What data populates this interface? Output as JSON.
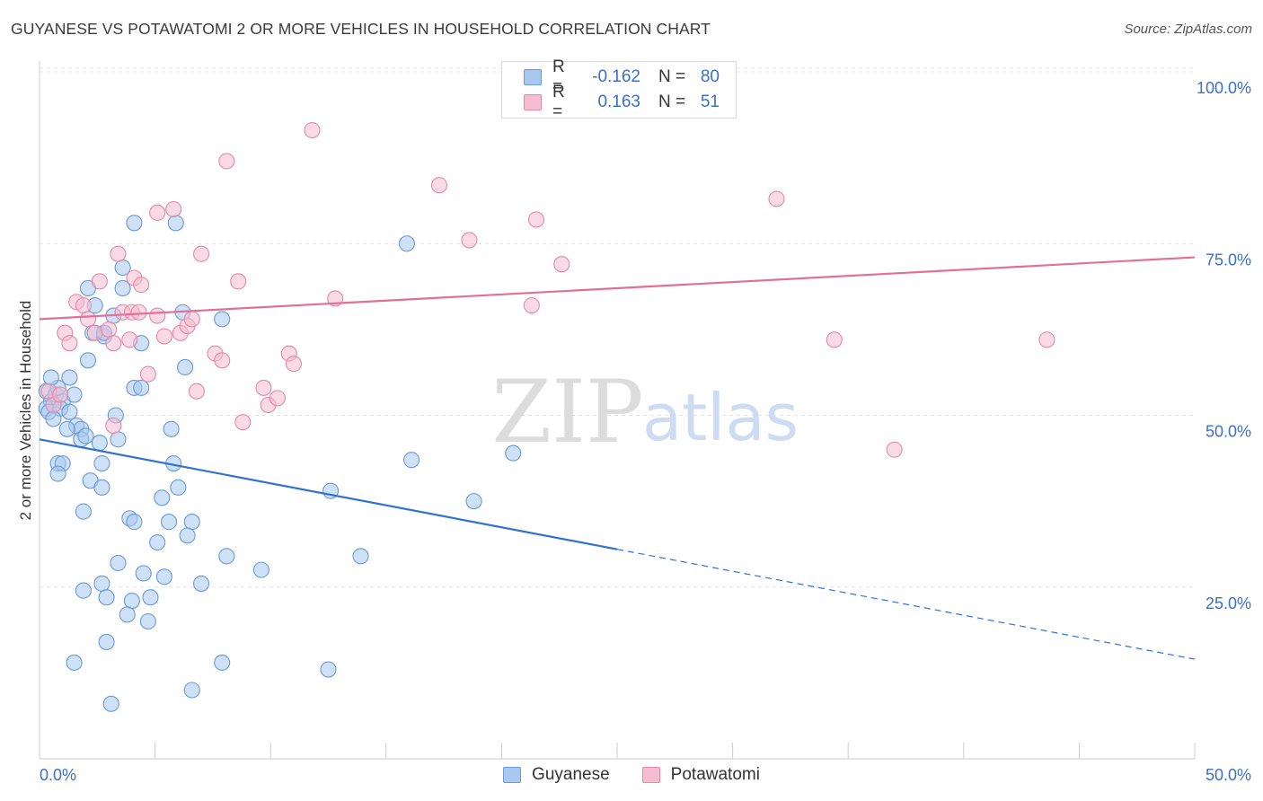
{
  "title": "GUYANESE VS POTAWATOMI 2 OR MORE VEHICLES IN HOUSEHOLD CORRELATION CHART",
  "source": "Source: ZipAtlas.com",
  "watermark": {
    "zip": "ZIP",
    "atlas": "atlas"
  },
  "legend": {
    "rows": [
      {
        "r_label": "R =",
        "r_value": "-0.162",
        "n_label": "N =",
        "n_value": "80",
        "color": "#a8c8f0",
        "border": "#6a9ad8"
      },
      {
        "r_label": "R =",
        "r_value": "0.163",
        "n_label": "N =",
        "n_value": "51",
        "color": "#f6bcd0",
        "border": "#e588a8"
      }
    ]
  },
  "bottom_legend": [
    {
      "label": "Guyanese",
      "color": "#a8c8f0",
      "border": "#6a9ad8"
    },
    {
      "label": "Potawatomi",
      "color": "#f6bcd0",
      "border": "#e588a8"
    }
  ],
  "chart_data": {
    "type": "scatter",
    "ylabel": "2 or more Vehicles in Household",
    "xlim": [
      0,
      50
    ],
    "ylim": [
      0,
      100
    ],
    "x_tick_labels": [
      "0.0%",
      "50.0%"
    ],
    "y_tick_labels": [
      {
        "value": 100,
        "label": "100.0%"
      },
      {
        "value": 75,
        "label": "75.0%"
      },
      {
        "value": 50,
        "label": "50.0%"
      },
      {
        "value": 25,
        "label": "25.0%"
      }
    ],
    "grid": true,
    "series": [
      {
        "name": "Guyanese",
        "color": "#a8c8f0",
        "stroke": "#6a9ad8",
        "trend_color": "#2f72d0",
        "trend": {
          "x0": 0,
          "y0": 46.5,
          "x1": 25,
          "y1": 30.5,
          "x_dash_end": 50,
          "y_dash_end": 14.5
        },
        "points": [
          [
            0.3,
            53.5
          ],
          [
            0.5,
            52
          ],
          [
            0.7,
            53
          ],
          [
            0.3,
            51
          ],
          [
            0.8,
            54
          ],
          [
            0.5,
            55.5
          ],
          [
            1.0,
            52
          ],
          [
            1.3,
            55.5
          ],
          [
            1.5,
            53
          ],
          [
            1.6,
            48.5
          ],
          [
            1.8,
            48
          ],
          [
            1.2,
            48
          ],
          [
            1.8,
            46.5
          ],
          [
            2.1,
            68.5
          ],
          [
            2.1,
            58
          ],
          [
            2.4,
            66
          ],
          [
            2.3,
            62
          ],
          [
            2.8,
            61.5
          ],
          [
            3.2,
            64.5
          ],
          [
            2.8,
            62
          ],
          [
            3.6,
            71.5
          ],
          [
            3.6,
            68.5
          ],
          [
            4.1,
            78
          ],
          [
            4.4,
            60.5
          ],
          [
            5.9,
            78
          ],
          [
            6.3,
            57
          ],
          [
            4.1,
            54
          ],
          [
            4.4,
            54
          ],
          [
            3.3,
            50
          ],
          [
            3.4,
            46.5
          ],
          [
            2.6,
            46
          ],
          [
            5.7,
            48
          ],
          [
            0.8,
            43
          ],
          [
            1.0,
            43
          ],
          [
            0.8,
            41.5
          ],
          [
            2.2,
            40.5
          ],
          [
            2.7,
            43
          ],
          [
            2.7,
            39.5
          ],
          [
            5.8,
            43
          ],
          [
            6.0,
            39.5
          ],
          [
            5.3,
            38
          ],
          [
            1.9,
            36
          ],
          [
            3.9,
            35
          ],
          [
            4.1,
            34.5
          ],
          [
            5.6,
            34.5
          ],
          [
            6.6,
            34.5
          ],
          [
            6.4,
            32.5
          ],
          [
            5.1,
            31.5
          ],
          [
            8.1,
            29.5
          ],
          [
            9.6,
            27.5
          ],
          [
            3.4,
            28.5
          ],
          [
            4.5,
            27
          ],
          [
            5.4,
            26.5
          ],
          [
            2.7,
            25.5
          ],
          [
            7.0,
            25.5
          ],
          [
            1.9,
            24.5
          ],
          [
            2.9,
            23.5
          ],
          [
            4.0,
            23
          ],
          [
            4.8,
            23.5
          ],
          [
            3.8,
            21
          ],
          [
            4.7,
            20
          ],
          [
            2.9,
            17
          ],
          [
            1.5,
            14
          ],
          [
            7.9,
            14
          ],
          [
            12.5,
            13
          ],
          [
            6.6,
            10
          ],
          [
            3.1,
            8
          ],
          [
            7.9,
            64
          ],
          [
            15.9,
            75
          ],
          [
            12.6,
            39
          ],
          [
            13.9,
            29.5
          ],
          [
            16.1,
            43.5
          ],
          [
            18.8,
            37.5
          ],
          [
            20.5,
            44.5
          ],
          [
            6.2,
            65
          ],
          [
            0.4,
            50.5
          ],
          [
            0.9,
            51
          ],
          [
            1.3,
            50.5
          ],
          [
            0.6,
            49.5
          ],
          [
            2.0,
            47
          ]
        ]
      },
      {
        "name": "Potawatomi",
        "color": "#f6bcd0",
        "stroke": "#e588a8",
        "trend_color": "#e07098",
        "trend": {
          "x0": 0,
          "y0": 64,
          "x1": 50,
          "y1": 73
        },
        "points": [
          [
            0.4,
            53.5
          ],
          [
            0.6,
            51.5
          ],
          [
            0.9,
            53
          ],
          [
            1.1,
            62
          ],
          [
            1.3,
            60.5
          ],
          [
            1.6,
            66.5
          ],
          [
            1.9,
            66
          ],
          [
            2.1,
            64
          ],
          [
            2.4,
            62
          ],
          [
            2.6,
            69.5
          ],
          [
            3.0,
            62.5
          ],
          [
            3.2,
            60.5
          ],
          [
            3.4,
            73.5
          ],
          [
            3.6,
            65
          ],
          [
            3.9,
            61
          ],
          [
            4.1,
            70
          ],
          [
            4.0,
            65
          ],
          [
            4.3,
            65
          ],
          [
            4.4,
            69
          ],
          [
            4.7,
            56
          ],
          [
            5.1,
            64.5
          ],
          [
            5.4,
            61.5
          ],
          [
            5.8,
            80
          ],
          [
            5.1,
            79.5
          ],
          [
            6.1,
            62
          ],
          [
            6.4,
            63
          ],
          [
            6.6,
            64
          ],
          [
            6.8,
            53.5
          ],
          [
            7.0,
            73.5
          ],
          [
            7.6,
            59
          ],
          [
            7.9,
            58
          ],
          [
            8.1,
            87
          ],
          [
            8.6,
            69.5
          ],
          [
            8.8,
            49
          ],
          [
            9.7,
            54
          ],
          [
            9.9,
            51.5
          ],
          [
            10.3,
            52.5
          ],
          [
            10.8,
            59
          ],
          [
            11.0,
            57.5
          ],
          [
            11.8,
            91.5
          ],
          [
            12.8,
            67
          ],
          [
            17.3,
            83.5
          ],
          [
            18.6,
            75.5
          ],
          [
            21.3,
            66
          ],
          [
            21.5,
            78.5
          ],
          [
            22.6,
            72
          ],
          [
            31.9,
            81.5
          ],
          [
            34.4,
            61
          ],
          [
            37.0,
            45
          ],
          [
            43.6,
            61
          ],
          [
            3.2,
            48.5
          ]
        ]
      }
    ]
  }
}
